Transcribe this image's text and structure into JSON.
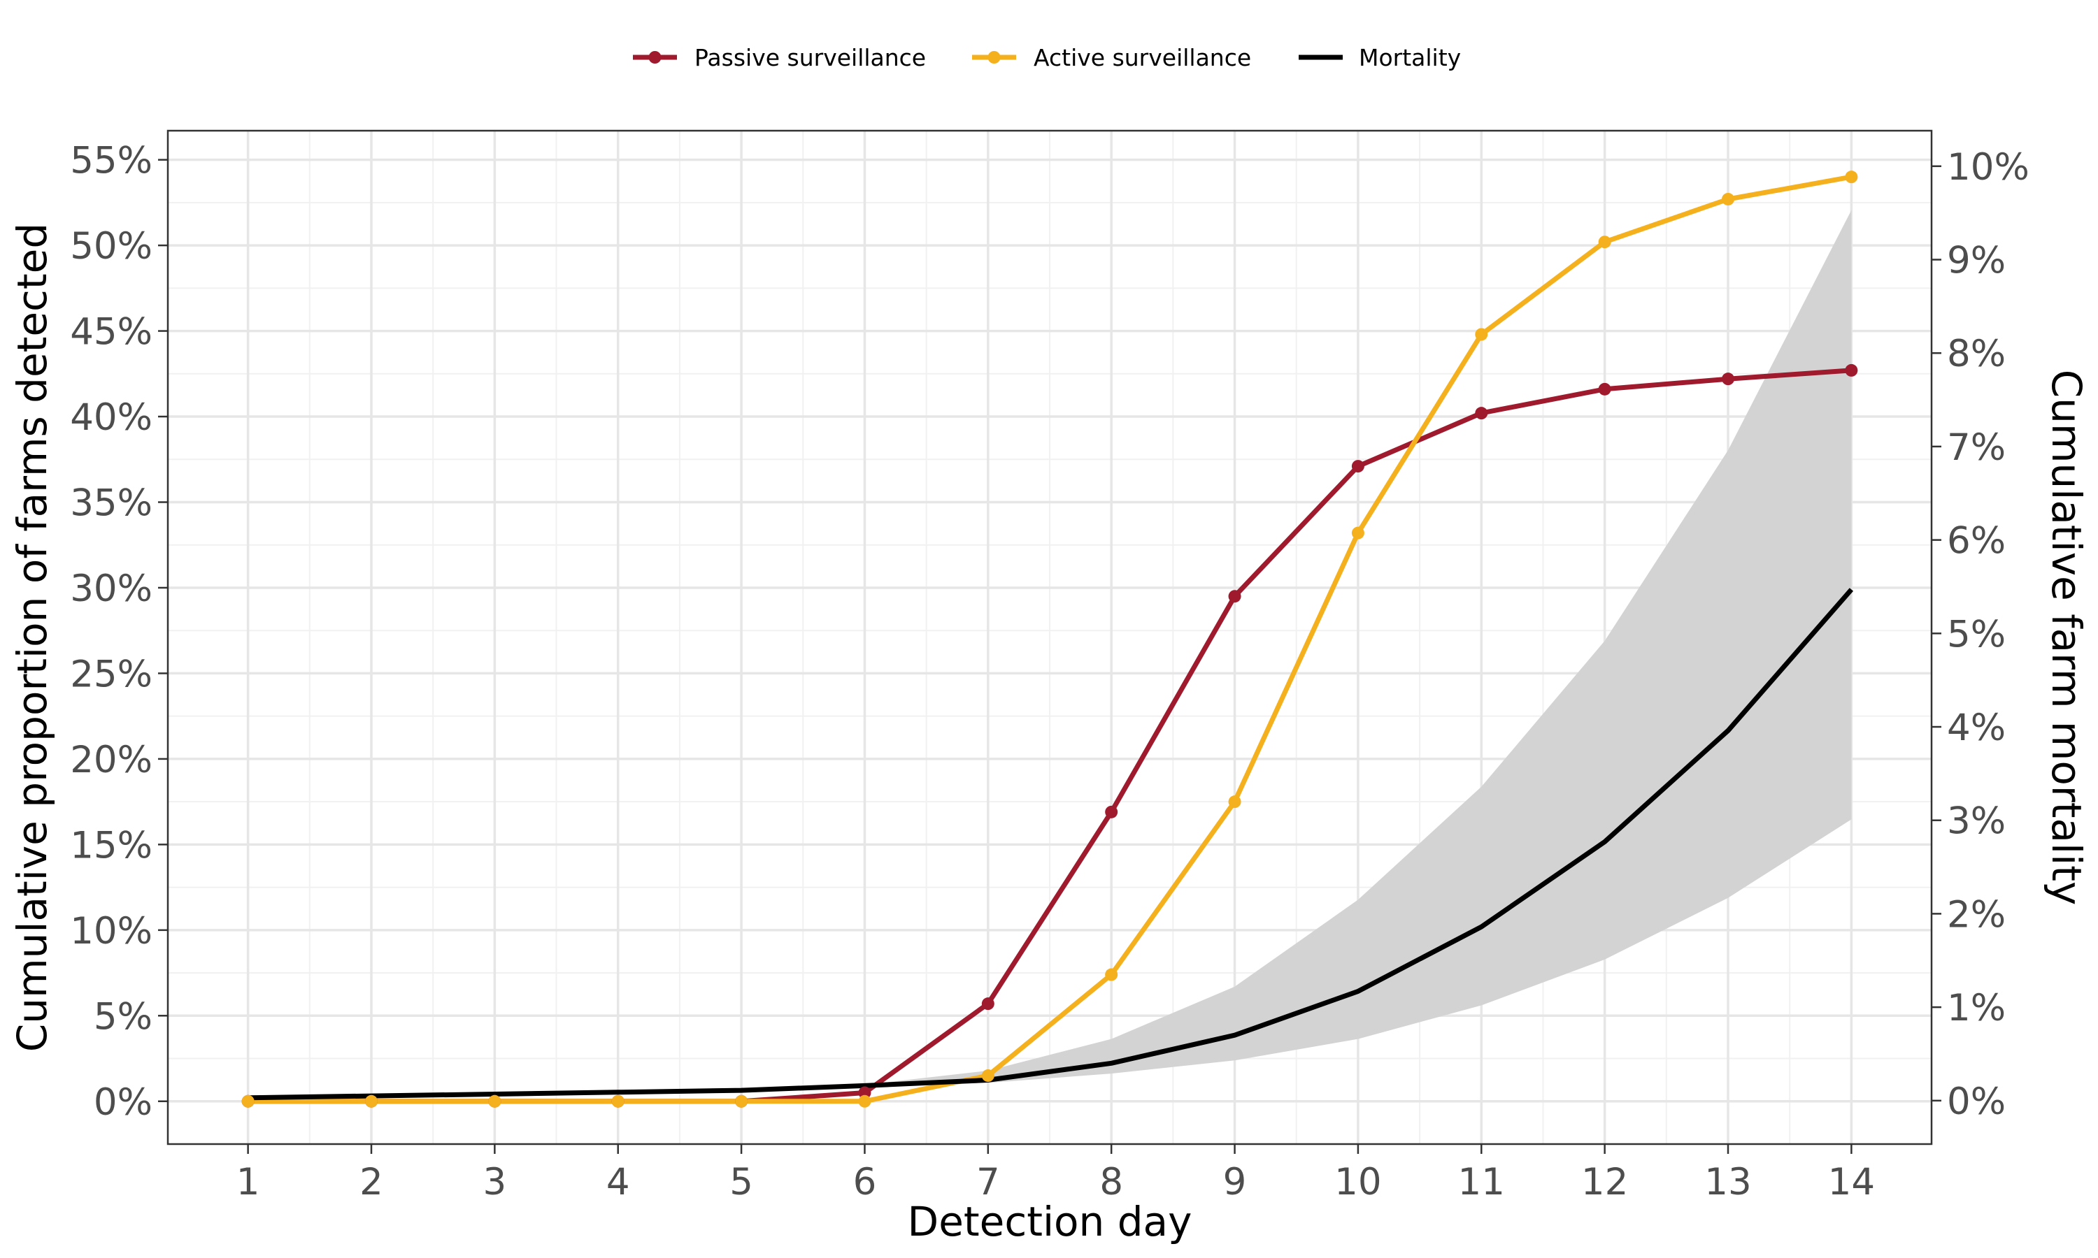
{
  "chart_data": {
    "type": "line",
    "title": "",
    "xlabel": "Detection day",
    "ylabel_left": "Cumulative proportion of farms detected",
    "ylabel_right": "Cumulative farm mortality",
    "x": [
      1,
      2,
      3,
      4,
      5,
      6,
      7,
      8,
      9,
      10,
      11,
      12,
      13,
      14
    ],
    "x_tick_labels": [
      "1",
      "2",
      "3",
      "4",
      "5",
      "6",
      "7",
      "8",
      "9",
      "10",
      "11",
      "12",
      "13",
      "14"
    ],
    "xlim": [
      0.35,
      14.65
    ],
    "ylim_left": [
      -0.025,
      0.567
    ],
    "yticks_left": [
      0,
      0.05,
      0.1,
      0.15,
      0.2,
      0.25,
      0.3,
      0.35,
      0.4,
      0.45,
      0.5,
      0.55
    ],
    "ytick_labels_left": [
      "0%",
      "5%",
      "10%",
      "15%",
      "20%",
      "25%",
      "30%",
      "35%",
      "40%",
      "45%",
      "50%",
      "55%"
    ],
    "ylim_right": [
      -0.00465,
      0.1038
    ],
    "yticks_right": [
      0,
      0.01,
      0.02,
      0.03,
      0.04,
      0.05,
      0.06,
      0.07,
      0.08,
      0.09,
      0.1
    ],
    "ytick_labels_right": [
      "0%",
      "1%",
      "2%",
      "3%",
      "4%",
      "5%",
      "6%",
      "7%",
      "8%",
      "9%",
      "10%"
    ],
    "grid": true,
    "legend_position": "top",
    "legend": [
      {
        "label": "Passive surveillance",
        "color": "#a01a2e",
        "style": "line-point"
      },
      {
        "label": "Active surveillance",
        "color": "#f5b01e",
        "style": "line-point"
      },
      {
        "label": "Mortality",
        "color": "#000000",
        "style": "line"
      }
    ],
    "series": [
      {
        "name": "Passive surveillance",
        "axis": "left",
        "color": "#a01a2e",
        "values": [
          0.0,
          0.0,
          0.0,
          0.0,
          0.0,
          0.005,
          0.057,
          0.169,
          0.295,
          0.371,
          0.402,
          0.416,
          0.422,
          0.427
        ]
      },
      {
        "name": "Active surveillance",
        "axis": "left",
        "color": "#f5b01e",
        "values": [
          0.0,
          0.0,
          0.0,
          0.0,
          0.0,
          0.0,
          0.015,
          0.074,
          0.175,
          0.332,
          0.448,
          0.502,
          0.527,
          0.54
        ]
      },
      {
        "name": "Mortality",
        "axis": "right",
        "color": "#000000",
        "values": [
          0.0003,
          0.0005,
          0.0007,
          0.0009,
          0.0011,
          0.0016,
          0.0022,
          0.004,
          0.007,
          0.0117,
          0.0186,
          0.0277,
          0.0396,
          0.0547
        ],
        "band_lower": [
          0.0003,
          0.0005,
          0.0007,
          0.0009,
          0.0011,
          0.0015,
          0.0019,
          0.0029,
          0.0043,
          0.0066,
          0.0102,
          0.0151,
          0.0217,
          0.0301
        ],
        "band_upper": [
          0.0003,
          0.0005,
          0.0007,
          0.0009,
          0.0011,
          0.0017,
          0.0032,
          0.0066,
          0.0122,
          0.0215,
          0.0336,
          0.0492,
          0.0696,
          0.0953
        ],
        "band_color": "#d3d3d3"
      }
    ]
  }
}
